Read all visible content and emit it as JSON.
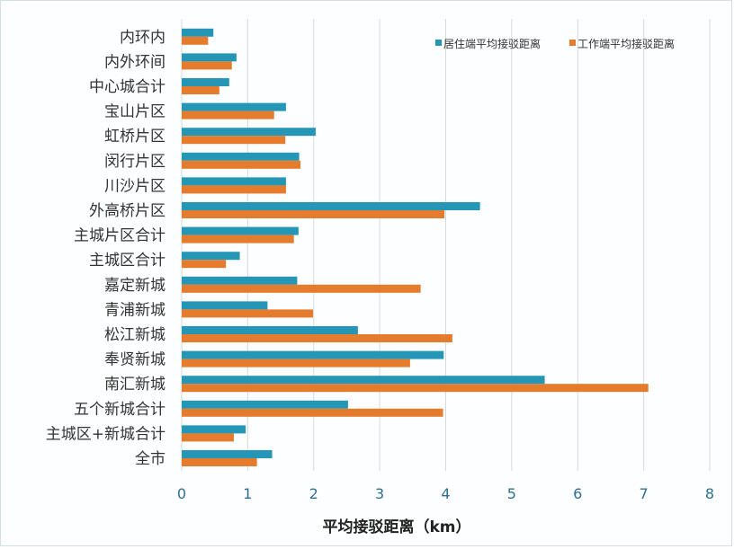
{
  "chart_data": {
    "type": "bar",
    "orientation": "horizontal",
    "categories": [
      "内环内",
      "内外环间",
      "中心城合计",
      "宝山片区",
      "虹桥片区",
      "闵行片区",
      "川沙片区",
      "外高桥片区",
      "主城片区合计",
      "主城区合计",
      "嘉定新城",
      "青浦新城",
      "松江新城",
      "奉贤新城",
      "南汇新城",
      "五个新城合计",
      "主城区+新城合计",
      "全市"
    ],
    "series": [
      {
        "name": "居住端平均接驳距离",
        "color": "#2596b6",
        "values": [
          0.48,
          0.83,
          0.72,
          1.58,
          2.03,
          1.78,
          1.58,
          4.52,
          1.77,
          0.88,
          1.75,
          1.3,
          2.67,
          3.97,
          5.5,
          2.52,
          0.97,
          1.37
        ]
      },
      {
        "name": "工作端平均接驳距离",
        "color": "#e57b2c",
        "values": [
          0.4,
          0.76,
          0.57,
          1.4,
          1.57,
          1.8,
          1.58,
          3.98,
          1.7,
          0.67,
          3.62,
          1.99,
          4.1,
          3.46,
          7.07,
          3.96,
          0.79,
          1.14
        ]
      }
    ],
    "xlim": [
      0,
      8
    ],
    "xticks": [
      0,
      1,
      2,
      3,
      4,
      5,
      6,
      7,
      8
    ],
    "xlabel": "平均接驳距离（km）",
    "ylabel": "",
    "title": "",
    "grid": "vertical",
    "legend_position": "top-right"
  }
}
